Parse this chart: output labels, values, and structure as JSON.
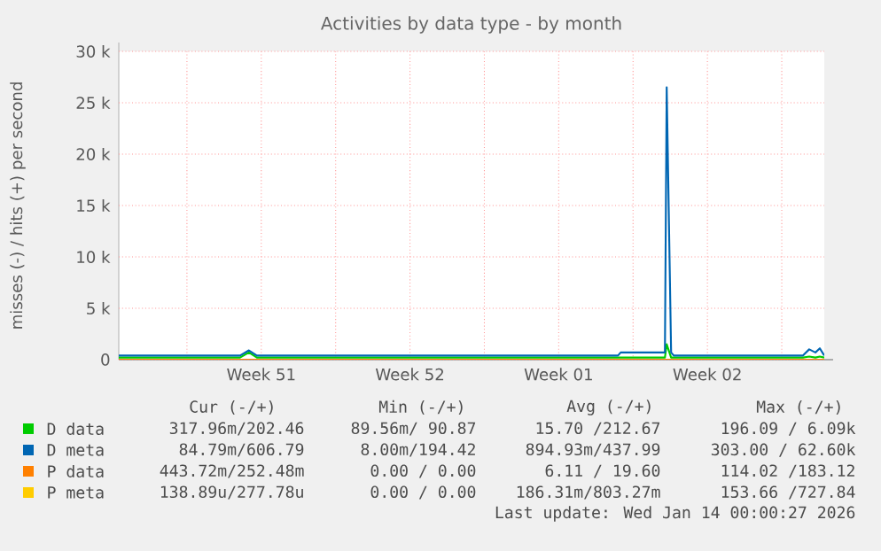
{
  "chart_data": {
    "type": "line",
    "title": "Activities by data type - by month",
    "ylabel": "misses (-) / hits (+) per second",
    "x": [
      "2025-12-11T19:00",
      "2025-12-14",
      "2025-12-17T12:00",
      "2025-12-17T22:00",
      "2025-12-18T07:00",
      "2025-12-22",
      "2025-12-26",
      "2025-12-30",
      "2026-01-03",
      "2026-01-04T07:00",
      "2026-01-04T10:00",
      "2026-01-06T12:00",
      "2026-01-06T14:00",
      "2026-01-06T19:00",
      "2026-01-06T22:00",
      "2026-01-09",
      "2026-01-13",
      "2026-01-13T07:00",
      "2026-01-13T14:00",
      "2026-01-13T19:00",
      "2026-01-14"
    ],
    "series": [
      {
        "name": "D data",
        "color": "#00cc00",
        "values": [
          200,
          200,
          200,
          700,
          200,
          200,
          200,
          200,
          200,
          200,
          200,
          200,
          1500,
          200,
          200,
          200,
          200,
          300,
          200,
          300,
          200
        ]
      },
      {
        "name": "D meta",
        "color": "#0066b3",
        "values": [
          400,
          400,
          400,
          900,
          400,
          400,
          400,
          400,
          400,
          400,
          700,
          700,
          26500,
          700,
          400,
          400,
          400,
          1000,
          700,
          1100,
          400
        ]
      },
      {
        "name": "P data",
        "color": "#ff8000",
        "values": [
          0,
          0,
          0,
          0,
          0,
          0,
          0,
          0,
          0,
          0,
          0,
          0,
          0,
          0,
          0,
          0,
          0,
          0,
          0,
          0,
          0
        ]
      },
      {
        "name": "P meta",
        "color": "#ffcc00",
        "values": [
          null,
          null,
          null,
          null,
          null,
          null,
          null,
          null,
          null,
          null,
          null,
          null,
          null,
          null,
          null,
          null,
          null,
          null,
          null,
          null,
          null
        ]
      }
    ],
    "xlim": [
      "2025-12-11T19:00",
      "2026-01-14"
    ],
    "ylim": [
      0,
      30000
    ],
    "xticks": [
      {
        "value": "2025-12-15",
        "label": null
      },
      {
        "value": "2025-12-18T12:00",
        "label": "Week 51"
      },
      {
        "value": "2025-12-22",
        "label": null
      },
      {
        "value": "2025-12-25T12:00",
        "label": "Week 52"
      },
      {
        "value": "2025-12-29",
        "label": null
      },
      {
        "value": "2026-01-01T12:00",
        "label": "Week 01"
      },
      {
        "value": "2026-01-05",
        "label": null
      },
      {
        "value": "2026-01-08T12:00",
        "label": "Week 02"
      },
      {
        "value": "2026-01-12",
        "label": null
      }
    ],
    "yticks": [
      0,
      {
        "value": 5000,
        "label": "5 k"
      },
      {
        "value": 10000,
        "label": "10 k"
      },
      {
        "value": 15000,
        "label": "15 k"
      },
      {
        "value": 20000,
        "label": "20 k"
      },
      {
        "value": 25000,
        "label": "25 k"
      },
      {
        "value": 30000,
        "label": "30 k"
      }
    ],
    "grid": true,
    "legend": "bottom",
    "marker": "none",
    "line_style": "solid",
    "annotations": [
      "Cur (-/+)",
      "Min (-/+)",
      "Avg (-/+)",
      "Max (-/+)",
      "317.96m/202.46",
      "89.56m/ 90.87",
      "15.70 /212.67",
      "196.09 /  6.09k",
      "84.79m/606.79",
      "8.00m/194.42",
      "894.93m/437.99",
      "303.00 / 62.60k",
      "443.72m/252.48m",
      "0.00 /  0.00",
      "6.11 / 19.60",
      "114.02 /183.12",
      "138.89u/277.78u",
      "0.00 /  0.00",
      "186.31m/803.27m",
      "153.66 /727.84",
      "Last update: Wed Jan 14 00:00:27 2026"
    ]
  }
}
